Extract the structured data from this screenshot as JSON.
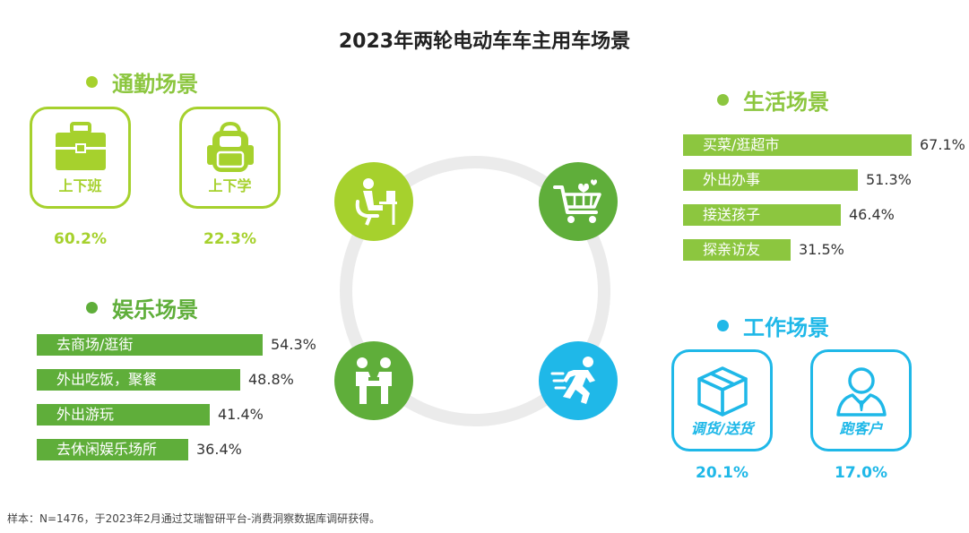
{
  "title": "2023年两轮电动车车主用车场景",
  "colors": {
    "green_light": "#a6d12d",
    "green_dark": "#5fae3a",
    "bar_green": "#8cc63f",
    "cyan": "#1fb8e8",
    "ring": "#ebebeb"
  },
  "commute": {
    "heading": "通勤场景",
    "cards": [
      {
        "label": "上下班",
        "icon": "briefcase-icon",
        "value": "60.2%"
      },
      {
        "label": "上下学",
        "icon": "backpack-icon",
        "value": "22.3%"
      }
    ]
  },
  "center_icons": [
    "person-at-desk-icon",
    "shopping-cart-hearts-icon",
    "two-people-handshake-icon",
    "running-person-icon"
  ],
  "chart_data": [
    {
      "type": "bar",
      "title": "生活场景",
      "categories": [
        "买菜/逛超市",
        "外出办事",
        "接送孩子",
        "探亲访友"
      ],
      "values": [
        67.1,
        51.3,
        46.4,
        31.5
      ],
      "labels": [
        "67.1%",
        "51.3%",
        "46.4%",
        "31.5%"
      ]
    },
    {
      "type": "bar",
      "title": "娱乐场景",
      "categories": [
        "去商场/逛街",
        "外出吃饭，聚餐",
        "外出游玩",
        "去休闲娱乐场所"
      ],
      "values": [
        54.3,
        48.8,
        41.4,
        36.4
      ],
      "labels": [
        "54.3%",
        "48.8%",
        "41.4%",
        "36.4%"
      ]
    }
  ],
  "work": {
    "heading": "工作场景",
    "cards": [
      {
        "label": "调货/送货",
        "icon": "package-box-icon",
        "value": "20.1%"
      },
      {
        "label": "跑客户",
        "icon": "customer-person-icon",
        "value": "17.0%"
      }
    ]
  },
  "footnote": "样本：N=1476，于2023年2月通过艾瑞智研平台-消费洞察数据库调研获得。"
}
